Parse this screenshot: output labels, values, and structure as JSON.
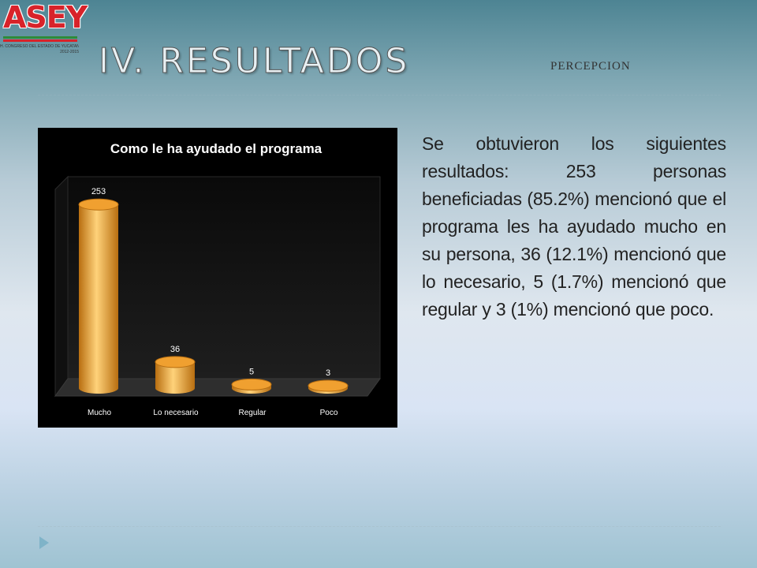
{
  "logo": {
    "text": "ASEY",
    "subtext": "H. CONGRESO DEL ESTADO DE YUCATAN",
    "subtext2": "2012-2015"
  },
  "slide": {
    "title": "IV. RESULTADOS",
    "subtitle": "PERCEPCION",
    "body": "Se obtuvieron los siguientes resultados: 253 personas beneficiadas (85.2%) mencionó que el programa les ha ayudado mucho en su persona, 36 (12.1%) mencionó que lo necesario, 5 (1.7%) mencionó que regular y 3 (1%) mencionó que poco."
  },
  "colors": {
    "bar": "#f0a030",
    "bar_dark": "#b86e10",
    "bar_light": "#ffd27a",
    "chart_bg": "#000000",
    "chart_text": "#ffffff"
  },
  "icons": {
    "nav_arrow": "triangle-right-icon"
  },
  "chart_data": {
    "type": "bar",
    "title": "Como le ha ayudado el programa",
    "categories": [
      "Mucho",
      "Lo necesario",
      "Regular",
      "Poco"
    ],
    "values": [
      253,
      36,
      5,
      3
    ],
    "ylim": [
      0,
      300
    ],
    "grid": false,
    "legend": "none",
    "style": "3d-cylinder"
  }
}
